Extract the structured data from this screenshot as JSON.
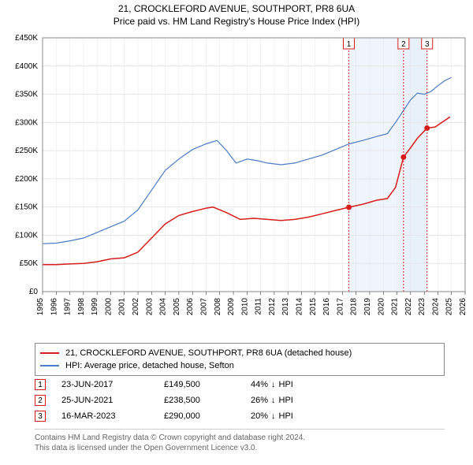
{
  "title_line1": "21, CROCKLEFORD AVENUE, SOUTHPORT, PR8 6UA",
  "title_line2": "Price paid vs. HM Land Registry's House Price Index (HPI)",
  "chart": {
    "type": "line",
    "background_color": "#ffffff",
    "plot_border_color": "#888888",
    "grid_color": "#e6e6e6",
    "vband_color": "#e6eef9",
    "x_axis": {
      "min_year": 1995,
      "max_year": 2026,
      "ticks": [
        1995,
        1996,
        1997,
        1998,
        1999,
        2000,
        2001,
        2002,
        2003,
        2004,
        2005,
        2006,
        2007,
        2008,
        2009,
        2010,
        2011,
        2012,
        2013,
        2014,
        2015,
        2016,
        2017,
        2018,
        2019,
        2020,
        2021,
        2022,
        2023,
        2024,
        2025,
        2026
      ]
    },
    "y_axis": {
      "min": 0,
      "max": 450000,
      "tick_step": 50000,
      "prefix": "£",
      "suffix": "K",
      "ticks": [
        "£0",
        "£50K",
        "£100K",
        "£150K",
        "£200K",
        "£250K",
        "£300K",
        "£350K",
        "£400K",
        "£450K"
      ]
    },
    "series": [
      {
        "name": "price_paid",
        "label": "21, CROCKLEFORD AVENUE, SOUTHPORT, PR8 6UA (detached house)",
        "color": "#d81b1b",
        "line_width": 1.5,
        "points_year_value": [
          [
            1995.0,
            48000
          ],
          [
            1996.0,
            48000
          ],
          [
            1997.0,
            49000
          ],
          [
            1998.0,
            50000
          ],
          [
            1999.0,
            53000
          ],
          [
            2000.0,
            58000
          ],
          [
            2001.0,
            60000
          ],
          [
            2002.0,
            70000
          ],
          [
            2003.0,
            95000
          ],
          [
            2004.0,
            120000
          ],
          [
            2005.0,
            135000
          ],
          [
            2006.0,
            142000
          ],
          [
            2007.0,
            148000
          ],
          [
            2007.5,
            150000
          ],
          [
            2008.5,
            140000
          ],
          [
            2009.5,
            128000
          ],
          [
            2010.5,
            130000
          ],
          [
            2011.5,
            128000
          ],
          [
            2012.5,
            126000
          ],
          [
            2013.5,
            128000
          ],
          [
            2014.5,
            132000
          ],
          [
            2015.5,
            138000
          ],
          [
            2016.5,
            144000
          ],
          [
            2017.47,
            149500
          ],
          [
            2018.5,
            155000
          ],
          [
            2019.5,
            162000
          ],
          [
            2020.3,
            165000
          ],
          [
            2020.9,
            185000
          ],
          [
            2021.48,
            238500
          ],
          [
            2022.0,
            255000
          ],
          [
            2022.5,
            272000
          ],
          [
            2023.21,
            290000
          ],
          [
            2023.8,
            292000
          ],
          [
            2024.3,
            300000
          ],
          [
            2024.9,
            310000
          ]
        ]
      },
      {
        "name": "hpi",
        "label": "HPI: Average price, detached house, Sefton",
        "color": "#4a7bc4",
        "line_width": 1.2,
        "points_year_value": [
          [
            1995.0,
            85000
          ],
          [
            1996.0,
            86000
          ],
          [
            1997.0,
            90000
          ],
          [
            1998.0,
            95000
          ],
          [
            1999.0,
            105000
          ],
          [
            2000.0,
            115000
          ],
          [
            2001.0,
            125000
          ],
          [
            2002.0,
            145000
          ],
          [
            2003.0,
            180000
          ],
          [
            2004.0,
            215000
          ],
          [
            2005.0,
            235000
          ],
          [
            2006.0,
            252000
          ],
          [
            2007.0,
            262000
          ],
          [
            2007.8,
            268000
          ],
          [
            2008.5,
            250000
          ],
          [
            2009.2,
            228000
          ],
          [
            2010.0,
            235000
          ],
          [
            2010.8,
            232000
          ],
          [
            2011.5,
            228000
          ],
          [
            2012.5,
            225000
          ],
          [
            2013.5,
            228000
          ],
          [
            2014.5,
            235000
          ],
          [
            2015.5,
            242000
          ],
          [
            2016.5,
            252000
          ],
          [
            2017.5,
            262000
          ],
          [
            2018.5,
            268000
          ],
          [
            2019.5,
            275000
          ],
          [
            2020.3,
            280000
          ],
          [
            2020.9,
            300000
          ],
          [
            2021.5,
            322000
          ],
          [
            2022.0,
            340000
          ],
          [
            2022.5,
            352000
          ],
          [
            2023.0,
            350000
          ],
          [
            2023.5,
            355000
          ],
          [
            2024.0,
            365000
          ],
          [
            2024.5,
            374000
          ],
          [
            2025.0,
            380000
          ]
        ]
      }
    ],
    "sale_markers": [
      {
        "n": "1",
        "year": 2017.47,
        "value": 149500,
        "color": "#d81b1b"
      },
      {
        "n": "2",
        "year": 2021.48,
        "value": 238500,
        "color": "#d81b1b"
      },
      {
        "n": "3",
        "year": 2023.21,
        "value": 290000,
        "color": "#d81b1b"
      }
    ]
  },
  "legend": {
    "rows": [
      {
        "color": "#d81b1b",
        "label": "21, CROCKLEFORD AVENUE, SOUTHPORT, PR8 6UA (detached house)"
      },
      {
        "color": "#4a7bc4",
        "label": "HPI: Average price, detached house, Sefton"
      }
    ]
  },
  "marker_rows": [
    {
      "n": "1",
      "color": "#d81b1b",
      "date": "23-JUN-2017",
      "price": "£149,500",
      "delta_pct": "44%",
      "delta_dir": "↓",
      "delta_label": "HPI"
    },
    {
      "n": "2",
      "color": "#d81b1b",
      "date": "25-JUN-2021",
      "price": "£238,500",
      "delta_pct": "26%",
      "delta_dir": "↓",
      "delta_label": "HPI"
    },
    {
      "n": "3",
      "color": "#d81b1b",
      "date": "16-MAR-2023",
      "price": "£290,000",
      "delta_pct": "20%",
      "delta_dir": "↓",
      "delta_label": "HPI"
    }
  ],
  "footer": {
    "line1": "Contains HM Land Registry data © Crown copyright and database right 2024.",
    "line2": "This data is licensed under the Open Government Licence v3.0."
  }
}
